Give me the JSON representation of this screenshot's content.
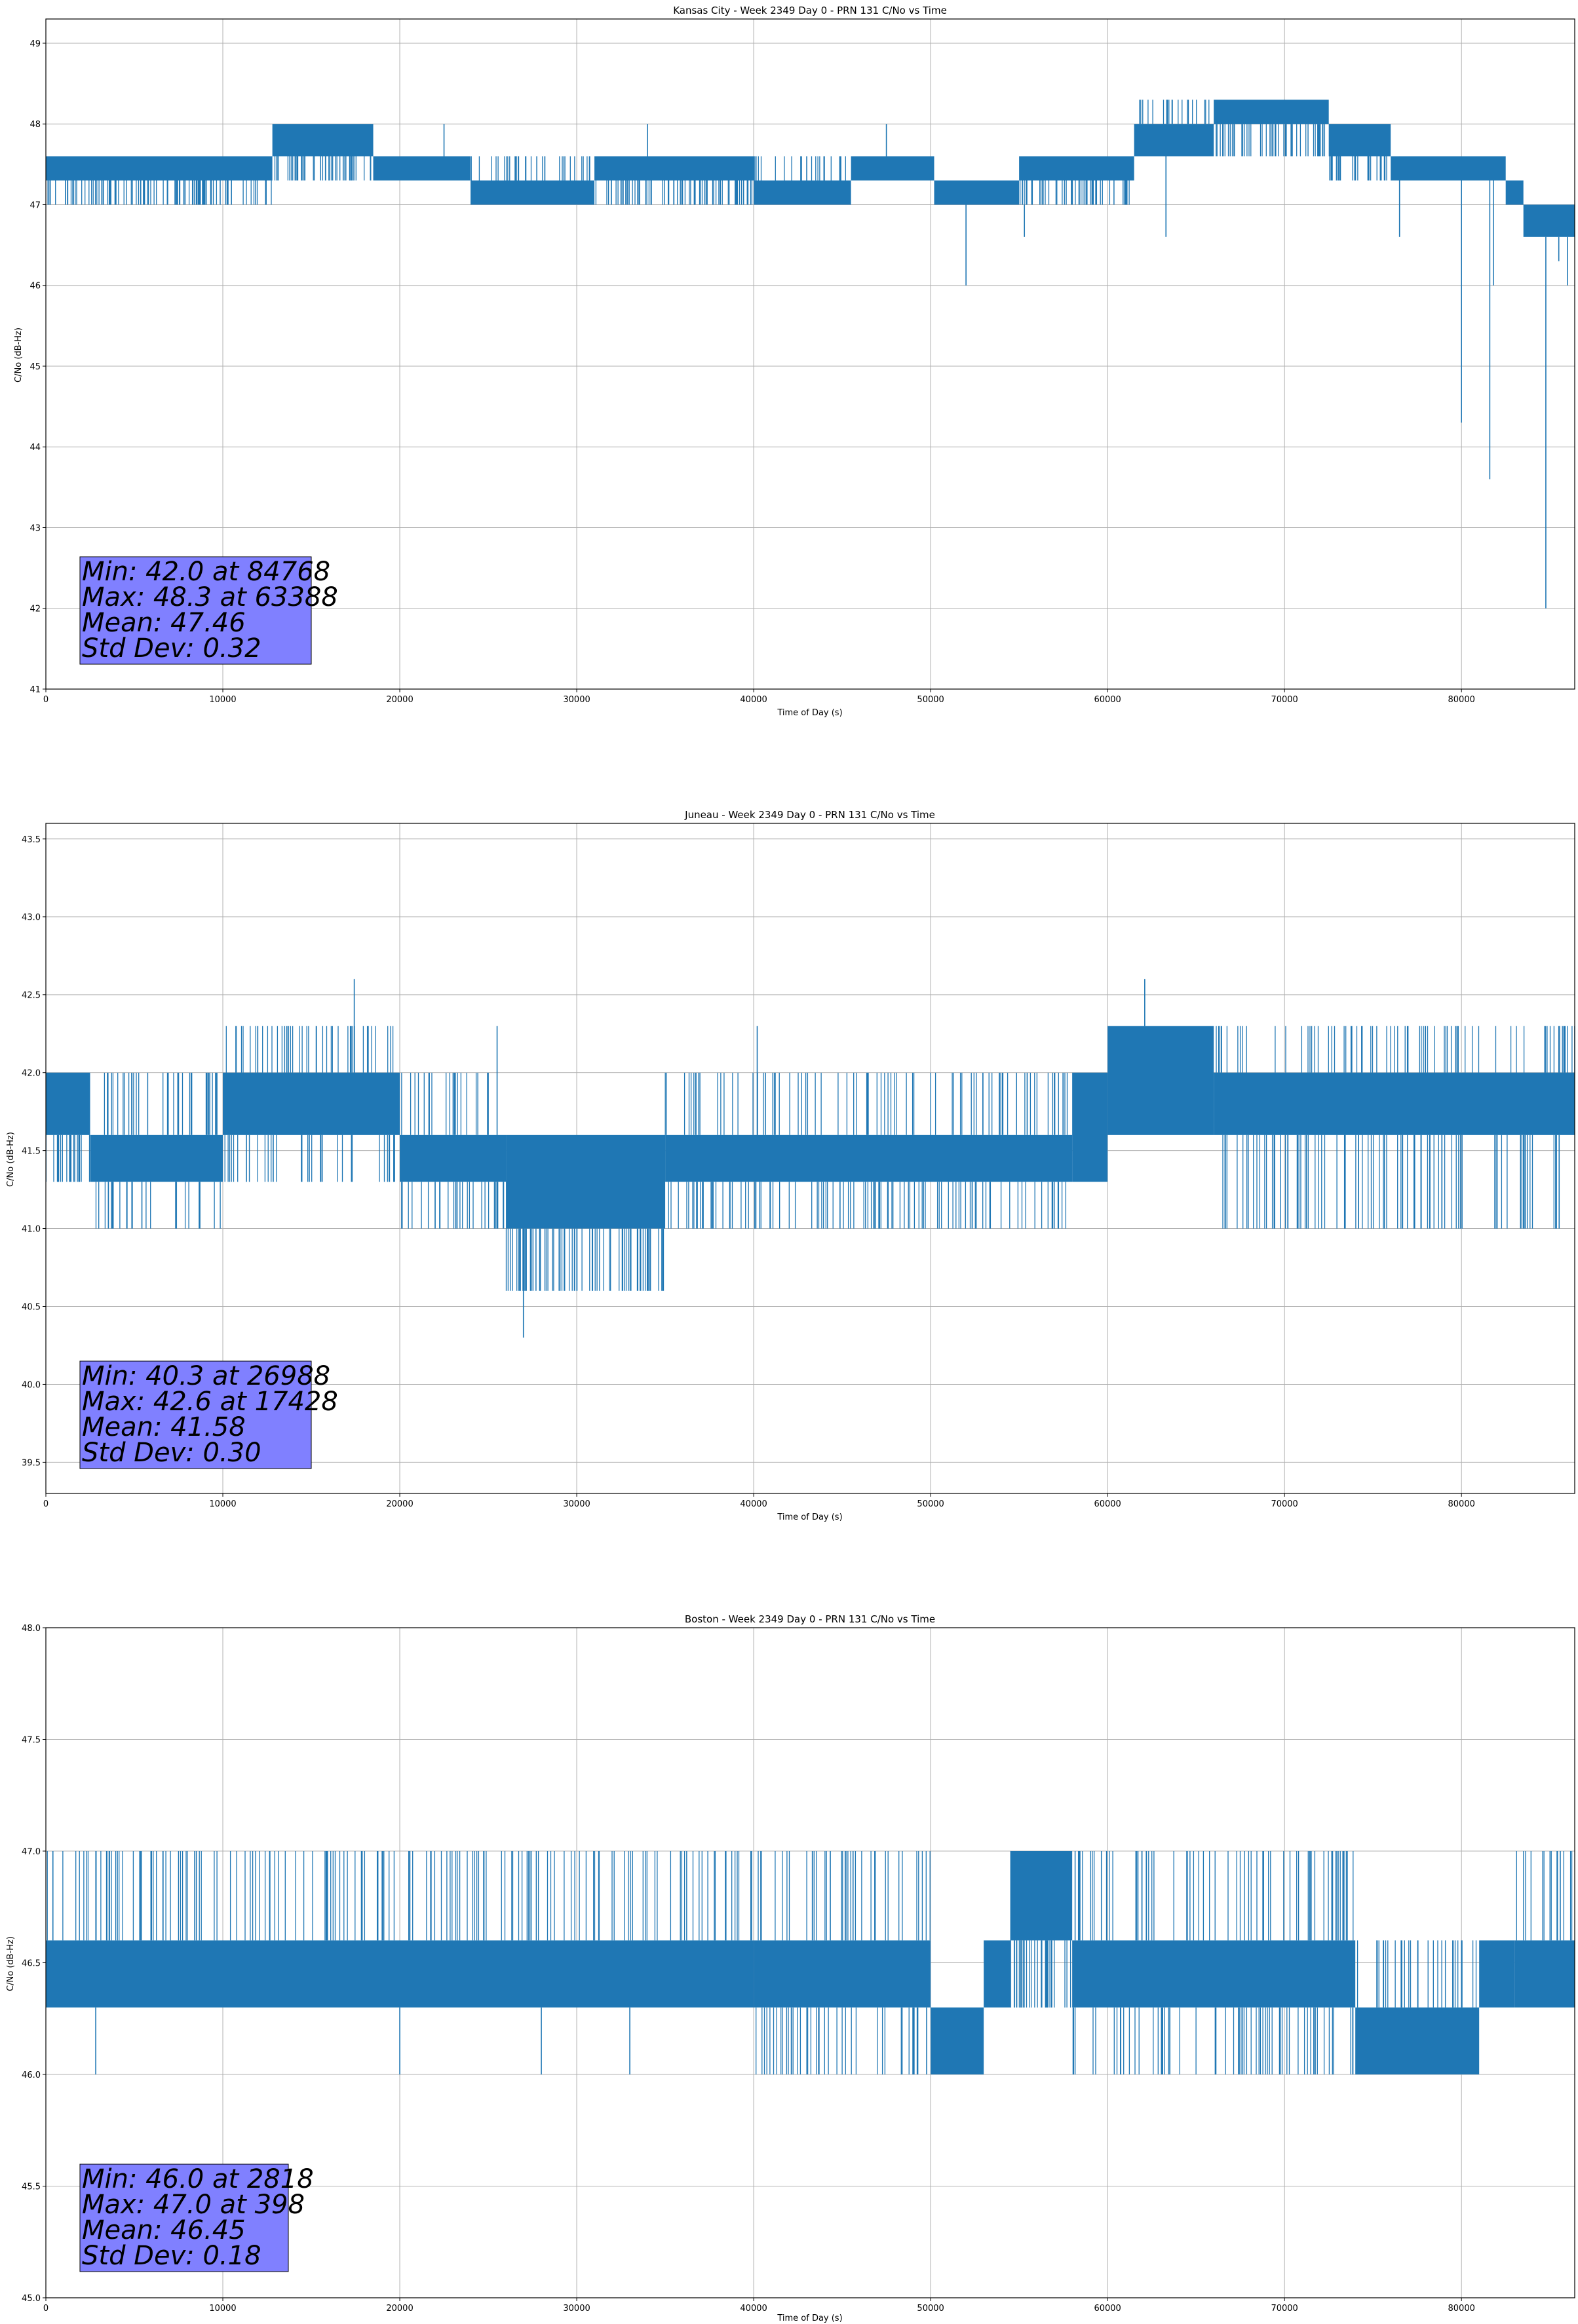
{
  "colors": {
    "series": "#1f77b4",
    "stats_box": "#8080ff",
    "grid": "#b0b0b0"
  },
  "chart_data": [
    {
      "type": "line",
      "title": "Kansas City - Week 2349 Day 0 - PRN 131 C/No vs Time",
      "xlabel": "Time of Day (s)",
      "ylabel": "C/No (dB-Hz)",
      "xlim": [
        0,
        86400
      ],
      "ylim": [
        41,
        49.3
      ],
      "xticks": [
        0,
        10000,
        20000,
        30000,
        40000,
        50000,
        60000,
        70000,
        80000
      ],
      "yticks": [
        41,
        42,
        43,
        44,
        45,
        46,
        47,
        48,
        49
      ],
      "ytick_decimals": 0,
      "grid": true,
      "series": [
        {
          "segments": [
            {
              "x0": 0,
              "x1": 12800,
              "lo": 47.0,
              "hi": 47.6,
              "core_lo": 47.3,
              "core_hi": 47.6,
              "ex_lo": [],
              "ex_hi": []
            },
            {
              "x0": 12800,
              "x1": 18500,
              "lo": 47.3,
              "hi": 48.0,
              "core_lo": 47.6,
              "core_hi": 48.0,
              "ex_lo": [],
              "ex_hi": []
            },
            {
              "x0": 18500,
              "x1": 24000,
              "lo": 47.3,
              "hi": 47.6,
              "core_lo": 47.3,
              "core_hi": 47.6,
              "ex_lo": [],
              "ex_hi": [
                [
                  22500,
                  48.0
                ]
              ]
            },
            {
              "x0": 24000,
              "x1": 31000,
              "lo": 47.0,
              "hi": 47.6,
              "core_lo": 47.0,
              "core_hi": 47.3,
              "ex_lo": [],
              "ex_hi": []
            },
            {
              "x0": 31000,
              "x1": 40000,
              "lo": 47.0,
              "hi": 47.6,
              "core_lo": 47.3,
              "core_hi": 47.6,
              "ex_lo": [],
              "ex_hi": [
                [
                  34000,
                  48.0
                ]
              ]
            },
            {
              "x0": 40000,
              "x1": 45500,
              "lo": 47.0,
              "hi": 47.6,
              "core_lo": 47.0,
              "core_hi": 47.3,
              "ex_lo": [],
              "ex_hi": []
            },
            {
              "x0": 45500,
              "x1": 50200,
              "lo": 47.3,
              "hi": 47.6,
              "core_lo": 47.3,
              "core_hi": 47.6,
              "ex_lo": [],
              "ex_hi": [
                [
                  47500,
                  48.0
                ]
              ]
            },
            {
              "x0": 50200,
              "x1": 55000,
              "lo": 47.0,
              "hi": 47.3,
              "core_lo": 47.0,
              "core_hi": 47.3,
              "ex_lo": [
                [
                  52000,
                  46.0
                ],
                [
                  55300,
                  46.6
                ]
              ],
              "ex_hi": []
            },
            {
              "x0": 55000,
              "x1": 61500,
              "lo": 47.0,
              "hi": 47.6,
              "core_lo": 47.3,
              "core_hi": 47.6,
              "ex_lo": [],
              "ex_hi": []
            },
            {
              "x0": 61500,
              "x1": 66000,
              "lo": 47.6,
              "hi": 48.3,
              "core_lo": 47.6,
              "core_hi": 48.0,
              "ex_lo": [
                [
                  63300,
                  46.6
                ]
              ],
              "ex_hi": [
                [
                  63388,
                  48.3
                ]
              ]
            },
            {
              "x0": 66000,
              "x1": 72500,
              "lo": 47.6,
              "hi": 48.3,
              "core_lo": 48.0,
              "core_hi": 48.3,
              "ex_lo": [],
              "ex_hi": []
            },
            {
              "x0": 72500,
              "x1": 76000,
              "lo": 47.3,
              "hi": 48.0,
              "core_lo": 47.6,
              "core_hi": 48.0,
              "ex_lo": [
                [
                  76500,
                  46.6
                ]
              ],
              "ex_hi": []
            },
            {
              "x0": 76000,
              "x1": 82500,
              "lo": 47.3,
              "hi": 47.6,
              "core_lo": 47.3,
              "core_hi": 47.6,
              "ex_lo": [
                [
                  80000,
                  44.3
                ],
                [
                  81600,
                  43.6
                ],
                [
                  81800,
                  46.0
                ]
              ],
              "ex_hi": []
            },
            {
              "x0": 82500,
              "x1": 83500,
              "lo": 47.0,
              "hi": 47.3,
              "core_lo": 47.0,
              "core_hi": 47.3,
              "ex_lo": [],
              "ex_hi": []
            },
            {
              "x0": 83500,
              "x1": 86400,
              "lo": 46.6,
              "hi": 47.0,
              "core_lo": 46.6,
              "core_hi": 47.0,
              "ex_lo": [
                [
                  84768,
                  42.0
                ],
                [
                  85500,
                  46.3
                ],
                [
                  86000,
                  46.0
                ]
              ],
              "ex_hi": []
            }
          ]
        }
      ],
      "stats": [
        "Min: 42.0 at 84768",
        "Max: 48.3 at 63388",
        "Mean: 47.46",
        "Std Dev: 0.32"
      ]
    },
    {
      "type": "line",
      "title": "Juneau - Week 2349 Day 0 - PRN 131 C/No vs Time",
      "xlabel": "Time of Day (s)",
      "ylabel": "C/No (dB-Hz)",
      "xlim": [
        0,
        86400
      ],
      "ylim": [
        39.3,
        43.6
      ],
      "xticks": [
        0,
        10000,
        20000,
        30000,
        40000,
        50000,
        60000,
        70000,
        80000
      ],
      "yticks": [
        39.5,
        40.0,
        40.5,
        41.0,
        41.5,
        42.0,
        42.5,
        43.0,
        43.5
      ],
      "ytick_decimals": 1,
      "grid": true,
      "series": [
        {
          "segments": [
            {
              "x0": 0,
              "x1": 2500,
              "lo": 41.3,
              "hi": 42.0,
              "core_lo": 41.6,
              "core_hi": 42.0,
              "ex_lo": [],
              "ex_hi": []
            },
            {
              "x0": 2500,
              "x1": 10000,
              "lo": 41.0,
              "hi": 42.0,
              "core_lo": 41.3,
              "core_hi": 41.6,
              "ex_lo": [],
              "ex_hi": []
            },
            {
              "x0": 10000,
              "x1": 20000,
              "lo": 41.3,
              "hi": 42.3,
              "core_lo": 41.6,
              "core_hi": 42.0,
              "ex_lo": [],
              "ex_hi": [
                [
                  17428,
                  42.6
                ]
              ]
            },
            {
              "x0": 20000,
              "x1": 26000,
              "lo": 41.0,
              "hi": 42.0,
              "core_lo": 41.3,
              "core_hi": 41.6,
              "ex_lo": [],
              "ex_hi": [
                [
                  25500,
                  42.3
                ]
              ]
            },
            {
              "x0": 26000,
              "x1": 35000,
              "lo": 40.6,
              "hi": 41.6,
              "core_lo": 41.0,
              "core_hi": 41.6,
              "ex_lo": [
                [
                  26988,
                  40.3
                ]
              ],
              "ex_hi": []
            },
            {
              "x0": 35000,
              "x1": 58000,
              "lo": 41.0,
              "hi": 42.0,
              "core_lo": 41.3,
              "core_hi": 41.6,
              "ex_lo": [],
              "ex_hi": [
                [
                  40200,
                  42.3
                ]
              ]
            },
            {
              "x0": 58000,
              "x1": 60000,
              "lo": 41.3,
              "hi": 42.0,
              "core_lo": 41.3,
              "core_hi": 42.0,
              "ex_lo": [],
              "ex_hi": []
            },
            {
              "x0": 60000,
              "x1": 66000,
              "lo": 41.6,
              "hi": 42.3,
              "core_lo": 41.6,
              "core_hi": 42.3,
              "ex_lo": [],
              "ex_hi": [
                [
                  62100,
                  42.6
                ]
              ]
            },
            {
              "x0": 66000,
              "x1": 86400,
              "lo": 41.0,
              "hi": 42.3,
              "core_lo": 41.6,
              "core_hi": 42.0,
              "ex_lo": [],
              "ex_hi": []
            }
          ]
        }
      ],
      "stats": [
        "Min: 40.3 at 26988",
        "Max: 42.6 at 17428",
        "Mean: 41.58",
        "Std Dev: 0.30"
      ]
    },
    {
      "type": "line",
      "title": "Boston - Week 2349 Day 0 - PRN 131 C/No vs Time",
      "xlabel": "Time of Day (s)",
      "ylabel": "C/No (dB-Hz)",
      "xlim": [
        0,
        86400
      ],
      "ylim": [
        45.0,
        48.0
      ],
      "xticks": [
        0,
        10000,
        20000,
        30000,
        40000,
        50000,
        60000,
        70000,
        80000
      ],
      "yticks": [
        45.0,
        45.5,
        46.0,
        46.5,
        47.0,
        47.5,
        48.0
      ],
      "ytick_decimals": 1,
      "grid": true,
      "series": [
        {
          "segments": [
            {
              "x0": 0,
              "x1": 40000,
              "lo": 46.3,
              "hi": 47.0,
              "core_lo": 46.3,
              "core_hi": 46.6,
              "ex_lo": [
                [
                  2818,
                  46.0
                ],
                [
                  20000,
                  46.0
                ],
                [
                  28000,
                  46.0
                ],
                [
                  33000,
                  46.0
                ]
              ],
              "ex_hi": [
                [
                  398,
                  47.0
                ]
              ]
            },
            {
              "x0": 40000,
              "x1": 50000,
              "lo": 46.0,
              "hi": 47.0,
              "core_lo": 46.3,
              "core_hi": 46.6,
              "ex_lo": [],
              "ex_hi": []
            },
            {
              "x0": 50000,
              "x1": 53000,
              "lo": 46.0,
              "hi": 46.3,
              "core_lo": 46.0,
              "core_hi": 46.3,
              "ex_lo": [],
              "ex_hi": []
            },
            {
              "x0": 53000,
              "x1": 54500,
              "lo": 46.3,
              "hi": 46.6,
              "core_lo": 46.3,
              "core_hi": 46.6,
              "ex_lo": [],
              "ex_hi": []
            },
            {
              "x0": 54500,
              "x1": 58000,
              "lo": 46.3,
              "hi": 47.0,
              "core_lo": 46.6,
              "core_hi": 47.0,
              "ex_lo": [],
              "ex_hi": []
            },
            {
              "x0": 58000,
              "x1": 74000,
              "lo": 46.0,
              "hi": 47.0,
              "core_lo": 46.3,
              "core_hi": 46.6,
              "ex_lo": [],
              "ex_hi": []
            },
            {
              "x0": 74000,
              "x1": 81000,
              "lo": 46.0,
              "hi": 46.6,
              "core_lo": 46.0,
              "core_hi": 46.3,
              "ex_lo": [],
              "ex_hi": []
            },
            {
              "x0": 81000,
              "x1": 83000,
              "lo": 46.3,
              "hi": 46.6,
              "core_lo": 46.3,
              "core_hi": 46.6,
              "ex_lo": [],
              "ex_hi": []
            },
            {
              "x0": 83000,
              "x1": 86400,
              "lo": 46.3,
              "hi": 47.0,
              "core_lo": 46.3,
              "core_hi": 46.6,
              "ex_lo": [],
              "ex_hi": []
            }
          ]
        }
      ],
      "stats": [
        "Min: 46.0 at 2818",
        "Max: 47.0 at 398",
        "Mean: 46.45",
        "Std Dev: 0.18"
      ]
    }
  ]
}
